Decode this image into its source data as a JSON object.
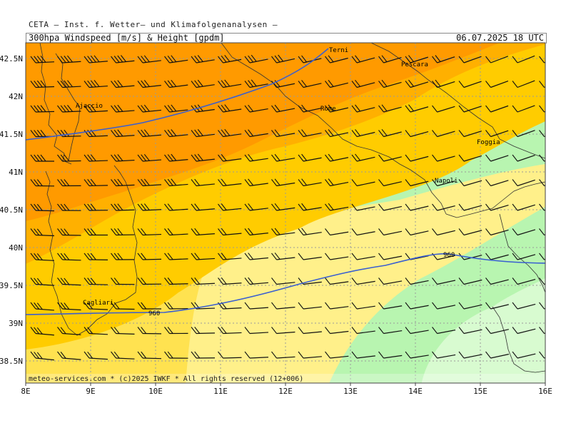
{
  "header": {
    "text": "CETA — Inst. f. Wetter— und Klimafolgenanalysen —"
  },
  "title": {
    "left": "300hpa_Windspeed_[m/s]_&_Height_[gpdm]",
    "right": "06.07.2025 18 UTC"
  },
  "axes": {
    "lon_labels": [
      "8E",
      "9E",
      "10E",
      "11E",
      "12E",
      "13E",
      "14E",
      "15E",
      "16E"
    ],
    "lat_labels": [
      "42.5N",
      "42N",
      "41.5N",
      "41N",
      "40.5N",
      "40N",
      "39.5N",
      "39N",
      "38.5N"
    ]
  },
  "cities": [
    {
      "name": "Terni"
    },
    {
      "name": "Pescara"
    },
    {
      "name": "Ajaccio"
    },
    {
      "name": "Rome"
    },
    {
      "name": "Foggia"
    },
    {
      "name": "Napoli"
    },
    {
      "name": "Cagliari"
    }
  ],
  "contours": [
    {
      "label": "960"
    },
    {
      "label": "960"
    }
  ],
  "footer": {
    "text": "meteo-services.com * (c)2025 IWKF * All rights reserved (12+006)"
  },
  "colors": {
    "band_orange_dark": "#ff9a00",
    "band_orange": "#ffb000",
    "band_gold": "#ffcc00",
    "band_yellow": "#ffe250",
    "band_pale_yellow": "#fff08a",
    "band_green": "#b8f5b0",
    "band_green_light": "#d8fbd0",
    "band_green_pale": "#ebfde6",
    "contour": "#3a5fd0",
    "coast": "#333333",
    "grid": "#9a9a9a"
  }
}
